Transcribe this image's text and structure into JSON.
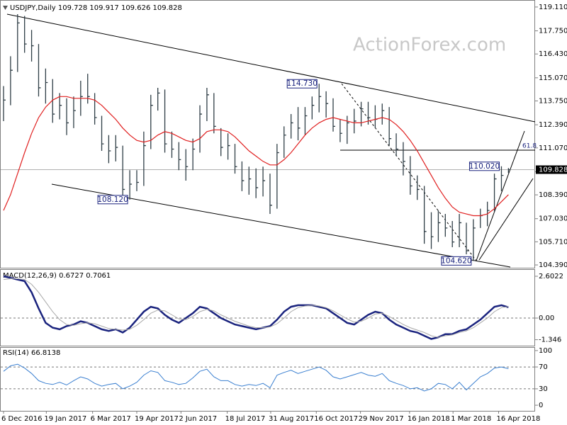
{
  "chart_data": [
    {
      "type": "ohlc",
      "title": "USDJPY,Daily  109.728 109.917 109.626 109.828",
      "watermark": "ActionForex.com",
      "color": "#2f3e46",
      "ylim": [
        104.23,
        119.51
      ],
      "yticks": [
        {
          "value": 119.11,
          "label": "119.110"
        },
        {
          "value": 117.75,
          "label": "117.750"
        },
        {
          "value": 116.43,
          "label": "116.430"
        },
        {
          "value": 115.07,
          "label": "115.070"
        },
        {
          "value": 113.75,
          "label": "113.750"
        },
        {
          "value": 112.39,
          "label": "112.390"
        },
        {
          "value": 111.07,
          "label": "111.070"
        },
        {
          "value": 109.71,
          "label": "109.710"
        },
        {
          "value": 108.39,
          "label": "108.390"
        },
        {
          "value": 107.03,
          "label": "107.030"
        },
        {
          "value": 105.71,
          "label": "105.710"
        },
        {
          "value": 104.39,
          "label": "104.390"
        }
      ],
      "high": [
        114.6,
        116.3,
        118.7,
        118.6,
        117.8,
        117.0,
        115.6,
        115.0,
        114.2,
        113.9,
        114.0,
        114.9,
        115.3,
        114.2,
        112.9,
        111.8,
        111.8,
        111.2,
        109.8,
        109.8,
        112.0,
        114.1,
        114.5,
        114.4,
        112.0,
        111.4,
        111.0,
        111.6,
        113.5,
        114.5,
        114.2,
        112.2,
        111.9,
        111.3,
        110.3,
        110.0,
        109.9,
        110.0,
        109.6,
        111.3,
        112.3,
        113.0,
        113.4,
        113.4,
        114.0,
        114.73,
        114.3,
        113.9,
        112.7,
        112.9,
        113.3,
        113.7,
        113.7,
        113.5,
        113.6,
        113.4,
        111.9,
        111.4,
        110.6,
        109.5,
        108.9,
        107.4,
        107.5,
        107.3,
        106.9,
        107.3,
        106.8,
        107.0,
        107.6,
        108.0,
        109.6,
        110.02,
        109.92
      ],
      "low": [
        112.6,
        113.5,
        115.4,
        116.5,
        116.0,
        114.0,
        113.6,
        112.5,
        112.7,
        111.8,
        112.2,
        112.9,
        113.6,
        112.4,
        110.9,
        110.2,
        110.3,
        108.3,
        108.12,
        108.6,
        108.9,
        111.0,
        113.2,
        110.8,
        110.5,
        109.8,
        109.2,
        109.8,
        110.8,
        112.6,
        111.9,
        110.6,
        110.4,
        109.6,
        108.6,
        108.4,
        108.2,
        108.3,
        107.3,
        107.6,
        110.5,
        111.6,
        111.5,
        111.8,
        112.7,
        113.1,
        112.8,
        112.0,
        111.4,
        111.3,
        111.9,
        112.3,
        112.4,
        112.2,
        112.4,
        111.2,
        110.6,
        109.5,
        108.4,
        108.1,
        105.6,
        105.3,
        105.7,
        106.0,
        105.4,
        105.4,
        105.0,
        104.62,
        106.5,
        106.6,
        107.4,
        108.6,
        109.63
      ],
      "close": [
        113.8,
        115.5,
        118.2,
        117.0,
        116.9,
        114.5,
        114.8,
        113.0,
        113.5,
        112.5,
        113.2,
        114.0,
        114.0,
        112.8,
        111.3,
        110.9,
        111.1,
        108.7,
        109.0,
        109.1,
        111.2,
        113.5,
        114.2,
        111.3,
        111.0,
        110.4,
        110.0,
        111.0,
        113.0,
        114.1,
        112.3,
        111.1,
        111.2,
        110.0,
        109.2,
        109.3,
        108.8,
        109.2,
        107.8,
        110.8,
        111.8,
        112.5,
        112.2,
        112.9,
        113.5,
        114.0,
        113.6,
        112.3,
        111.9,
        112.5,
        112.6,
        113.3,
        112.8,
        112.7,
        113.2,
        111.6,
        111.0,
        110.3,
        108.9,
        108.7,
        106.3,
        106.0,
        106.8,
        106.5,
        105.7,
        106.8,
        105.2,
        106.5,
        107.2,
        107.5,
        109.3,
        109.5,
        109.828
      ],
      "ma": {
        "color": "#e02020",
        "values": [
          107.5,
          108.4,
          109.6,
          110.8,
          111.9,
          112.8,
          113.4,
          113.8,
          114.0,
          114.0,
          113.9,
          113.9,
          113.9,
          113.8,
          113.5,
          113.1,
          112.7,
          112.2,
          111.8,
          111.5,
          111.4,
          111.5,
          111.8,
          112.0,
          111.9,
          111.7,
          111.5,
          111.4,
          111.6,
          112.0,
          112.1,
          112.1,
          112.0,
          111.7,
          111.3,
          110.9,
          110.6,
          110.3,
          110.1,
          110.1,
          110.4,
          110.8,
          111.3,
          111.8,
          112.2,
          112.5,
          112.7,
          112.8,
          112.7,
          112.6,
          112.5,
          112.5,
          112.6,
          112.7,
          112.8,
          112.7,
          112.4,
          112.0,
          111.5,
          110.9,
          110.2,
          109.5,
          108.8,
          108.2,
          107.7,
          107.4,
          107.3,
          107.2,
          107.2,
          107.3,
          107.6,
          108.0,
          108.4
        ]
      },
      "annotations": [
        {
          "x": 45,
          "value": 114.73,
          "label": "114.730"
        },
        {
          "x": 18,
          "value": 108.12,
          "label": "108.120"
        },
        {
          "x": 71,
          "value": 110.02,
          "label": "110.020"
        },
        {
          "x": 67,
          "value": 104.62,
          "label": "104.620"
        }
      ],
      "fib_level": {
        "value": 110.94,
        "label": "61.8"
      },
      "last_price": {
        "value": 109.828,
        "label": "109.828"
      }
    },
    {
      "type": "macd",
      "title": "MACD(12,26,9) 0.6727 0.7061",
      "ylim": [
        -1.718,
        3.043
      ],
      "yticks": [
        2.6022,
        {
          "value": 0,
          "label": "0.00"
        },
        -1.346
      ],
      "levels": [
        0
      ],
      "series": [
        {
          "color": "#1a237e",
          "values": [
            2.6,
            2.5,
            2.4,
            2.3,
            1.6,
            0.6,
            -0.3,
            -0.6,
            -0.7,
            -0.5,
            -0.4,
            -0.2,
            -0.3,
            -0.5,
            -0.7,
            -0.8,
            -0.7,
            -0.9,
            -0.6,
            -0.1,
            0.4,
            0.7,
            0.6,
            0.2,
            -0.1,
            -0.3,
            0.0,
            0.3,
            0.7,
            0.6,
            0.3,
            0.0,
            -0.2,
            -0.4,
            -0.5,
            -0.6,
            -0.7,
            -0.6,
            -0.5,
            -0.1,
            0.4,
            0.7,
            0.8,
            0.8,
            0.8,
            0.7,
            0.6,
            0.3,
            0.0,
            -0.3,
            -0.4,
            -0.1,
            0.2,
            0.4,
            0.3,
            -0.1,
            -0.4,
            -0.6,
            -0.8,
            -0.9,
            -1.1,
            -1.3,
            -1.2,
            -1.0,
            -1.0,
            -0.8,
            -0.7,
            -0.4,
            -0.1,
            0.3,
            0.7,
            0.8,
            0.67
          ]
        },
        {
          "color": "#a8a8a8",
          "values": [
            2.4,
            2.45,
            2.45,
            2.4,
            2.1,
            1.6,
            1.0,
            0.4,
            -0.1,
            -0.4,
            -0.45,
            -0.35,
            -0.3,
            -0.35,
            -0.5,
            -0.65,
            -0.7,
            -0.75,
            -0.7,
            -0.45,
            -0.1,
            0.3,
            0.5,
            0.45,
            0.2,
            -0.05,
            -0.1,
            0.1,
            0.4,
            0.55,
            0.45,
            0.2,
            0.0,
            -0.2,
            -0.35,
            -0.5,
            -0.6,
            -0.6,
            -0.55,
            -0.35,
            0.0,
            0.4,
            0.65,
            0.75,
            0.8,
            0.75,
            0.65,
            0.45,
            0.2,
            -0.05,
            -0.25,
            -0.2,
            0.0,
            0.25,
            0.3,
            0.1,
            -0.15,
            -0.4,
            -0.6,
            -0.75,
            -0.9,
            -1.1,
            -1.2,
            -1.1,
            -1.05,
            -0.9,
            -0.8,
            -0.6,
            -0.3,
            0.0,
            0.4,
            0.65,
            0.71
          ]
        }
      ]
    },
    {
      "type": "line",
      "title": "RSI(14) 66.8138",
      "ylim": [
        -10.3,
        106.4
      ],
      "yticks": [
        100,
        70,
        30,
        0
      ],
      "levels": [
        70,
        30
      ],
      "series": [
        {
          "color": "#3a7fd0",
          "values": [
            62,
            72,
            75,
            68,
            58,
            45,
            40,
            38,
            42,
            37,
            45,
            52,
            48,
            40,
            35,
            38,
            40,
            30,
            35,
            42,
            55,
            63,
            60,
            45,
            42,
            38,
            40,
            50,
            62,
            66,
            52,
            45,
            45,
            38,
            35,
            38,
            36,
            40,
            32,
            55,
            60,
            64,
            58,
            62,
            66,
            70,
            64,
            52,
            48,
            52,
            56,
            60,
            55,
            53,
            58,
            45,
            40,
            36,
            30,
            32,
            26,
            30,
            40,
            38,
            30,
            42,
            28,
            40,
            52,
            58,
            68,
            70,
            66.8
          ]
        }
      ],
      "xlim": [
        0,
        75.4
      ],
      "xticks": [
        {
          "value": 0,
          "label": "6 Dec 2016"
        },
        {
          "value": 6.1,
          "label": "19 Jan 2017"
        },
        {
          "value": 12.7,
          "label": "6 Mar 2017"
        },
        {
          "value": 19,
          "label": "19 Apr 2017"
        },
        {
          "value": 25.3,
          "label": "2 Jun 2017"
        },
        {
          "value": 31.9,
          "label": "18 Jul 2017"
        },
        {
          "value": 38.1,
          "label": "31 Aug 2017"
        },
        {
          "value": 44.6,
          "label": "16 Oct 2017"
        },
        {
          "value": 50.9,
          "label": "29 Nov 2017"
        },
        {
          "value": 57.9,
          "label": "16 Jan 2018"
        },
        {
          "value": 64.1,
          "label": "1 Mar 2018"
        },
        {
          "value": 70.6,
          "label": "16 Apr 2018"
        }
      ]
    }
  ]
}
